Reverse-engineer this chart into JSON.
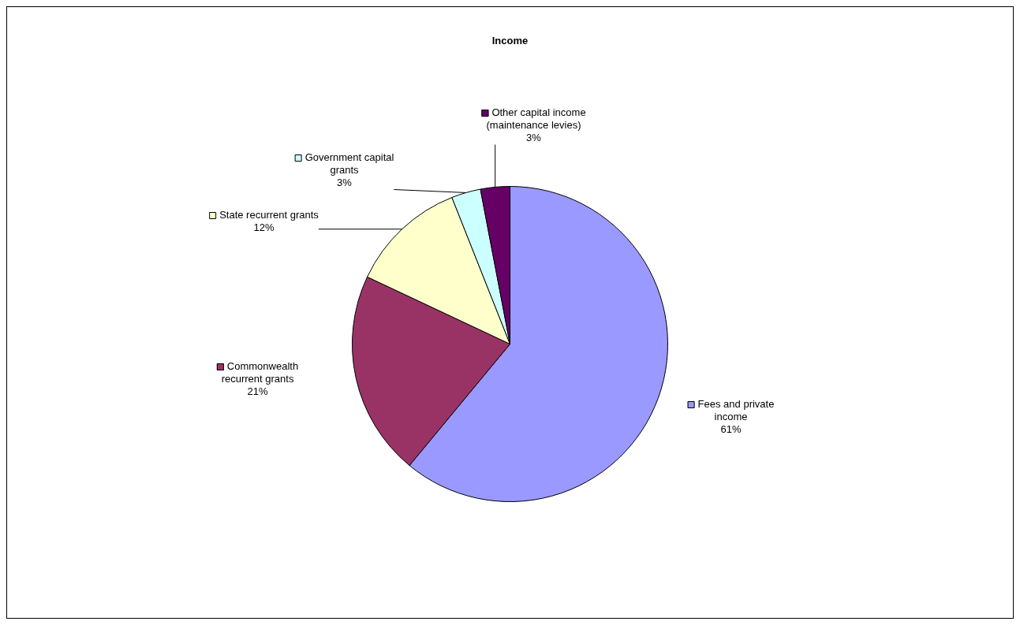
{
  "chart_data": {
    "type": "pie",
    "title": "Income",
    "categories": [
      "Fees and private income",
      "Commonwealth recurrent grants",
      "State recurrent grants",
      "Government capital grants",
      "Other capital income (maintenance levies)"
    ],
    "values": [
      61,
      21,
      12,
      3,
      3
    ],
    "colors": [
      "#9999ff",
      "#993366",
      "#ffffcc",
      "#ccffff",
      "#660066"
    ],
    "value_labels": [
      "61%",
      "21%",
      "12%",
      "3%",
      "3%"
    ],
    "legend": "left"
  }
}
